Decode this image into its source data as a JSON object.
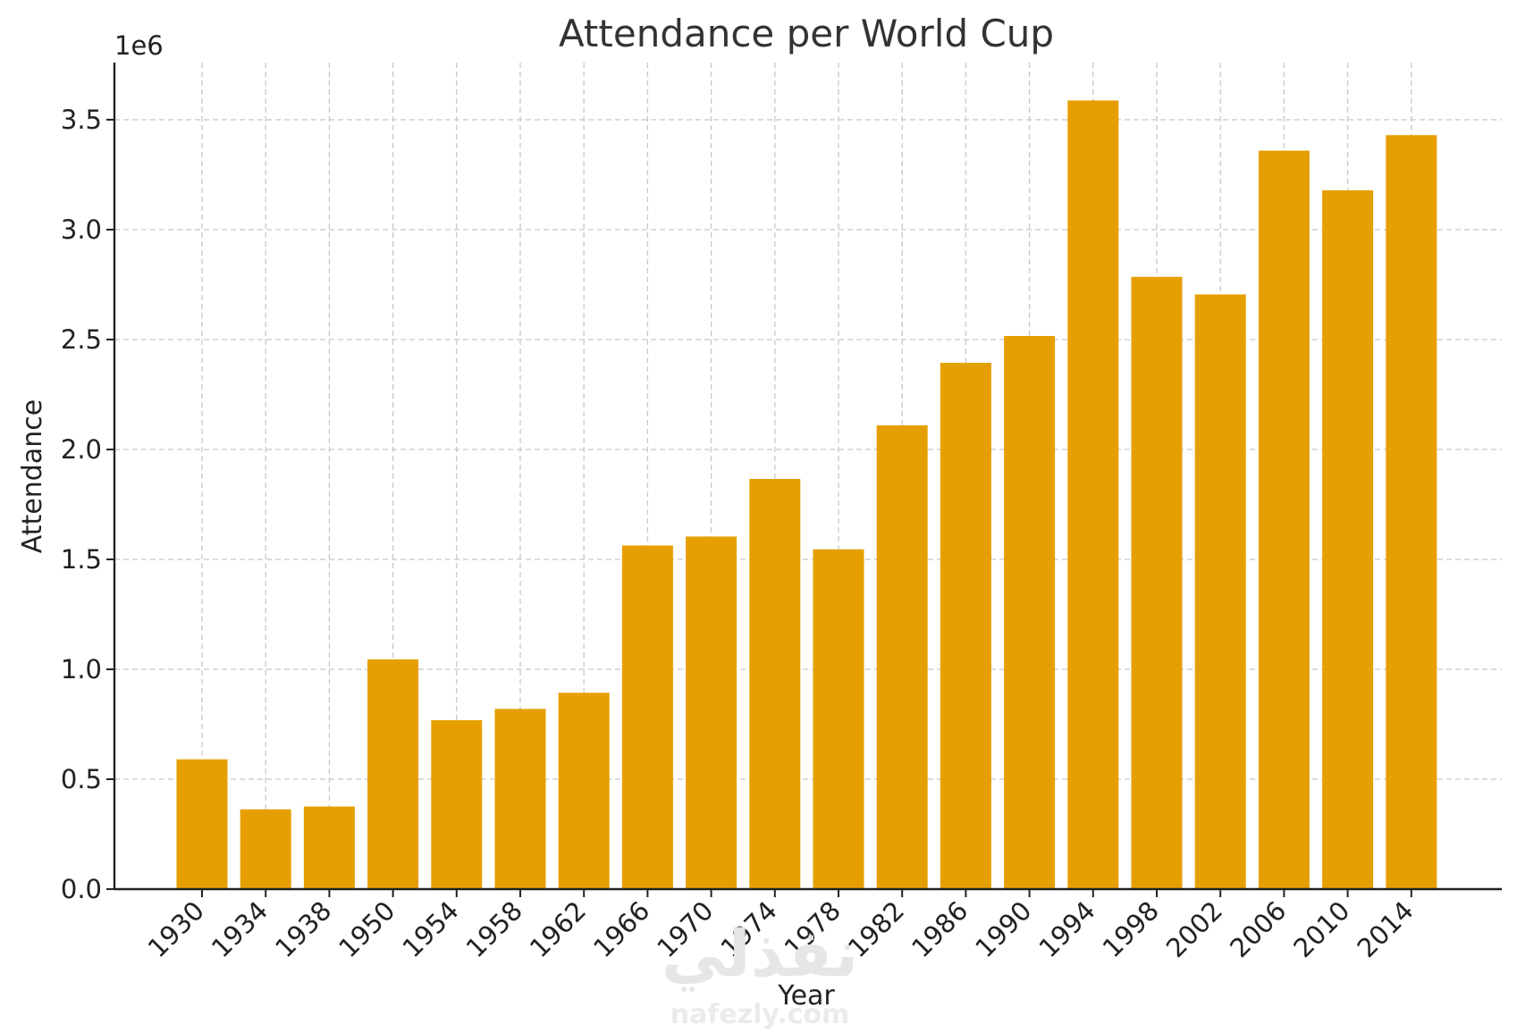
{
  "chart_data": {
    "type": "bar",
    "title": "Attendance per World Cup",
    "xlabel": "Year",
    "ylabel": "Attendance",
    "y_multiplier_label": "1e6",
    "categories": [
      "1930",
      "1934",
      "1938",
      "1950",
      "1954",
      "1958",
      "1962",
      "1966",
      "1970",
      "1974",
      "1978",
      "1982",
      "1986",
      "1990",
      "1994",
      "1998",
      "2002",
      "2006",
      "2010",
      "2014"
    ],
    "values": [
      590549,
      363000,
      375700,
      1045246,
      768607,
      819810,
      893172,
      1563135,
      1603975,
      1865753,
      1545791,
      2109723,
      2394031,
      2516215,
      3587538,
      2785100,
      2705197,
      3359439,
      3178856,
      3429873
    ],
    "ylim": [
      0,
      3760000
    ],
    "yticks": [
      0,
      500000,
      1000000,
      1500000,
      2000000,
      2500000,
      3000000,
      3500000
    ],
    "ytick_labels": [
      "0.0",
      "0.5",
      "1.0",
      "1.5",
      "2.0",
      "2.5",
      "3.0",
      "3.5"
    ],
    "grid": true,
    "bar_color": "#E69F00"
  },
  "watermark": {
    "arabic": "نفذلي",
    "latin": "nafezly.com"
  }
}
